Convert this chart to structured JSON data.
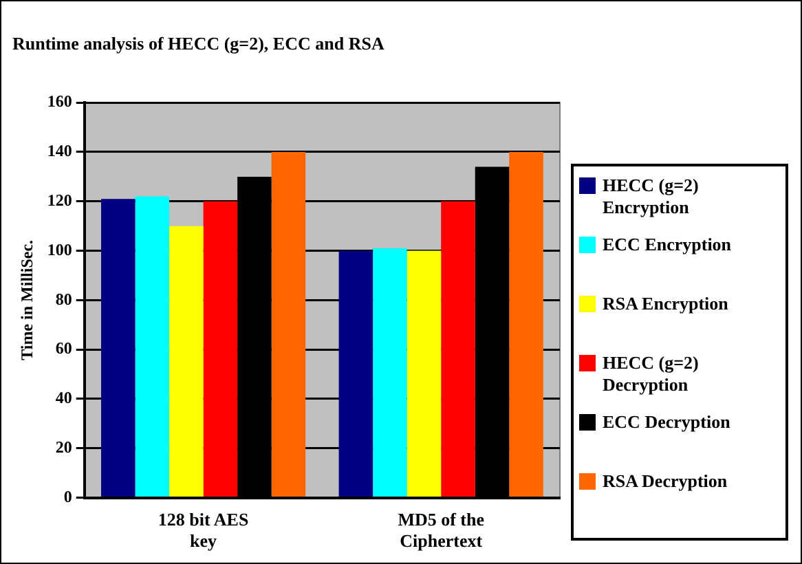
{
  "chart_data": {
    "type": "bar",
    "title": "Runtime analysis of HECC (g=2), ECC and RSA",
    "ylabel": "Time in MilliSec.",
    "categories": [
      "128 bit AES key",
      "MD5 of the Ciphertext"
    ],
    "series": [
      {
        "name": "HECC (g=2) Encryption",
        "color": "#000080",
        "values": [
          121,
          100
        ]
      },
      {
        "name": "ECC Encryption",
        "color": "#00ffff",
        "values": [
          122,
          101
        ]
      },
      {
        "name": "RSA Encryption",
        "color": "#ffff00",
        "values": [
          110,
          100
        ]
      },
      {
        "name": "HECC (g=2) Decryption",
        "color": "#ff0000",
        "values": [
          120,
          120
        ]
      },
      {
        "name": "ECC Decryption",
        "color": "#000000",
        "values": [
          130,
          134
        ]
      },
      {
        "name": "RSA Decryption",
        "color": "#ff6600",
        "values": [
          140,
          140
        ]
      }
    ],
    "ylim": [
      0,
      160
    ],
    "yticks": [
      0,
      20,
      40,
      60,
      80,
      100,
      120,
      140,
      160
    ],
    "grid": "y",
    "legend": "right"
  }
}
